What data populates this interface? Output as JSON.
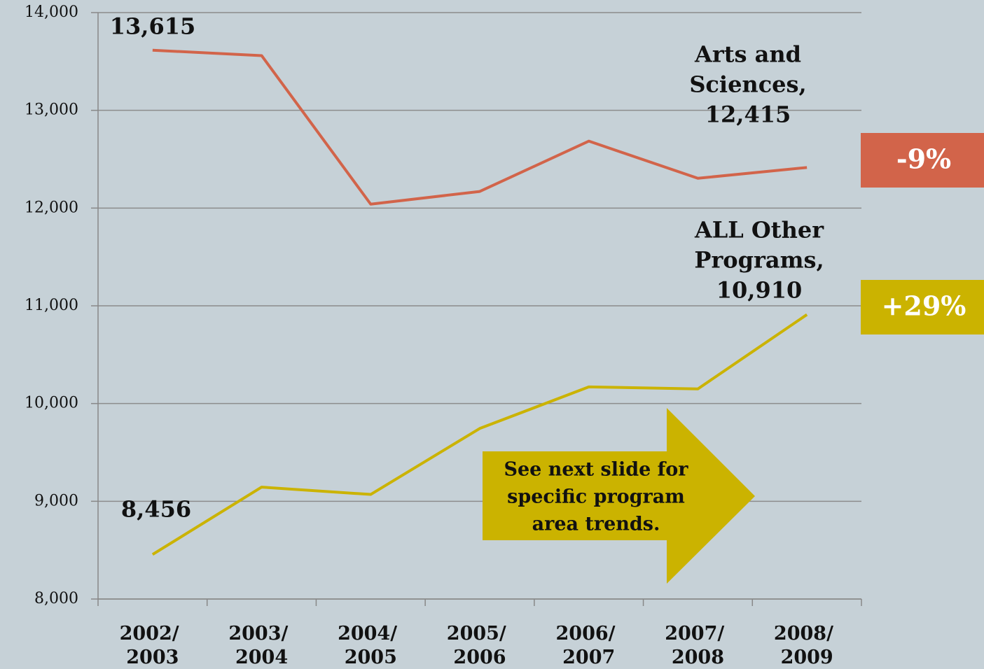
{
  "chart_data": {
    "type": "line",
    "categories": [
      "2002/ 2003",
      "2003/ 2004",
      "2004/ 2005",
      "2005/ 2006",
      "2006/ 2007",
      "2007/ 2008",
      "2008/ 2009"
    ],
    "series": [
      {
        "name": "Arts and Sciences",
        "color": "#d2644a",
        "values": [
          13615,
          13560,
          12040,
          12170,
          12685,
          12305,
          12415
        ]
      },
      {
        "name": "ALL Other Programs",
        "color": "#cbb300",
        "values": [
          8456,
          9145,
          9070,
          9745,
          10170,
          10150,
          10910
        ]
      }
    ],
    "ylim": [
      8000,
      14000
    ],
    "yticks": [
      {
        "value": 8000,
        "label": "8,000"
      },
      {
        "value": 9000,
        "label": "9,000"
      },
      {
        "value": 10000,
        "label": "10,000"
      },
      {
        "value": 11000,
        "label": "11,000"
      },
      {
        "value": 12000,
        "label": "12,000"
      },
      {
        "value": 13000,
        "label": "13,000"
      },
      {
        "value": 14000,
        "label": "14,000"
      }
    ],
    "grid": true,
    "annotations": [
      {
        "lines": [
          "13,615"
        ]
      },
      {
        "lines": [
          "Arts and",
          "Sciences,",
          "12,415"
        ]
      },
      {
        "lines": [
          "ALL Other",
          "Programs,",
          "10,910"
        ]
      },
      {
        "lines": [
          "8,456"
        ]
      }
    ],
    "badges": [
      {
        "text": "-9%",
        "color": "#d2644a"
      },
      {
        "text": "+29%",
        "color": "#cbb300"
      }
    ],
    "callout": {
      "lines": [
        "See next slide for",
        "specific program",
        "area trends."
      ],
      "color": "#cbb300"
    }
  }
}
